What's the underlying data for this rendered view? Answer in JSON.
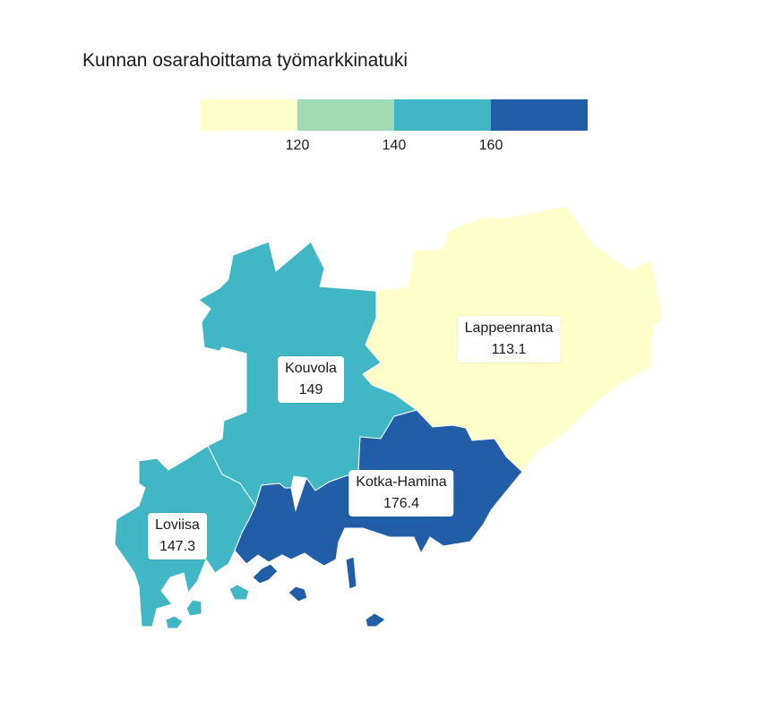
{
  "chart_data": {
    "type": "choropleth",
    "title": "Kunnan osarahoittama työmarkkinatuki",
    "legend": {
      "breaks": [
        "120",
        "140",
        "160"
      ],
      "colors": [
        "#ffffcc",
        "#a1dab4",
        "#41b6c4",
        "#225ea8"
      ]
    },
    "regions": [
      {
        "name": "Lappeenranta",
        "value": "113.1",
        "color": "#ffffcc"
      },
      {
        "name": "Kouvola",
        "value": "149",
        "color": "#41b6c4"
      },
      {
        "name": "Kotka-Hamina",
        "value": "176.4",
        "color": "#225ea8"
      },
      {
        "name": "Loviisa",
        "value": "147.3",
        "color": "#41b6c4"
      }
    ]
  }
}
